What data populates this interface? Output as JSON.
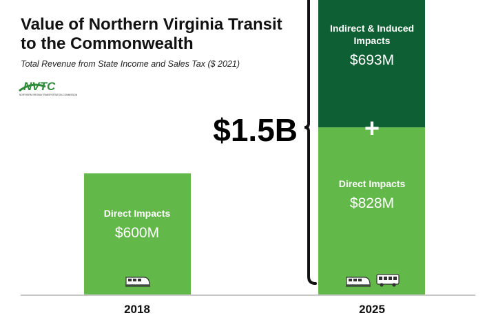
{
  "header": {
    "title_line1": "Value of Northern Virginia Transit",
    "title_line2": "to the Commonwealth",
    "subtitle": "Total Revenue from State Income and Sales Tax ($ 2021)",
    "logo_text": "NVTC",
    "logo_subtext": "NORTHERN VIRGINIA TRANSPORTATION COMMISSION"
  },
  "colors": {
    "direct": "#63b84a",
    "indirect": "#0f5f34",
    "text_light": "#ffffff",
    "baseline": "#c8c8c8",
    "bracket": "#111111",
    "logo_green": "#2e8b3a"
  },
  "chart_data": {
    "type": "bar",
    "stacked": true,
    "categories": [
      "2018",
      "2025"
    ],
    "series": [
      {
        "name": "Direct Impacts",
        "values": [
          600,
          828
        ],
        "labels": [
          "$600M",
          "$828M"
        ]
      },
      {
        "name": "Indirect & Induced Impacts",
        "values": [
          0,
          693
        ],
        "labels": [
          "",
          "$693M"
        ]
      }
    ],
    "units": "$ millions",
    "annotations": {
      "total_2025": "$1.5B",
      "plus": "+"
    },
    "icons": {
      "2018": [
        "train-icon"
      ],
      "2025": [
        "train-icon",
        "bus-icon"
      ]
    }
  }
}
